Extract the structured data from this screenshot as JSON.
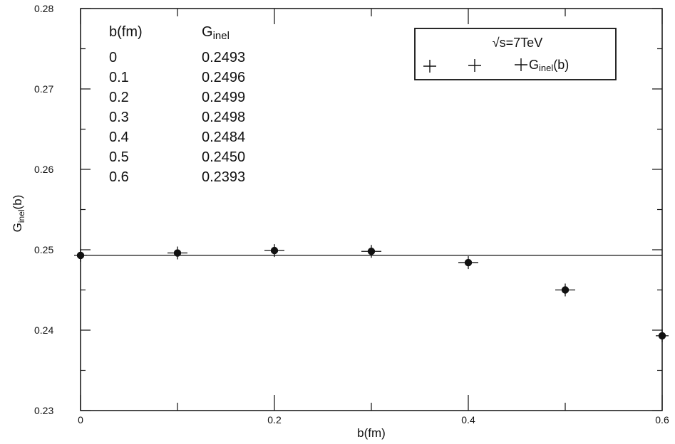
{
  "chart_data": {
    "type": "scatter",
    "xlabel": "b(fm)",
    "ylabel": "G",
    "ylabel_sub": "inel",
    "ylabel_suffix": "(b)",
    "xlim": [
      0,
      0.6
    ],
    "ylim": [
      0.23,
      0.28
    ],
    "x_ticks": [
      "0",
      "0.2",
      "0.4",
      "0.6"
    ],
    "y_ticks": [
      "0.23",
      "0.24",
      "0.25",
      "0.26",
      "0.27",
      "0.28"
    ],
    "grid": false,
    "series": [
      {
        "name": "Ginel(b)",
        "x": [
          0,
          0.1,
          0.2,
          0.3,
          0.4,
          0.5,
          0.6
        ],
        "y": [
          0.2493,
          0.2496,
          0.2499,
          0.2498,
          0.2484,
          0.245,
          0.2393
        ]
      }
    ],
    "reference_line": {
      "y": 0.2493
    },
    "legend": {
      "placement": "top-right",
      "title": "√s=7TeV",
      "entry": "G",
      "entry_sub": "inel",
      "entry_suffix": "(b)"
    },
    "annotation_table": {
      "headers": [
        "b(fm)",
        "G"
      ],
      "header_sub": "inel",
      "rows": [
        [
          "0",
          "0.2493"
        ],
        [
          "0.1",
          "0.2496"
        ],
        [
          "0.2",
          "0.2499"
        ],
        [
          "0.3",
          "0.2498"
        ],
        [
          "0.4",
          "0.2484"
        ],
        [
          "0.5",
          "0.2450"
        ],
        [
          "0.6",
          "0.2393"
        ]
      ]
    }
  }
}
